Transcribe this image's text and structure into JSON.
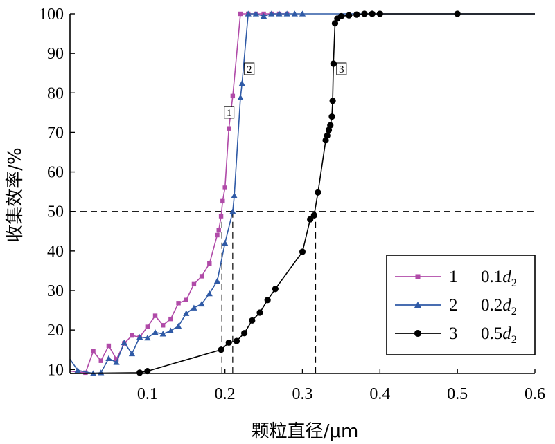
{
  "chart_data": {
    "type": "line",
    "xlabel": "颗粒直径/μm",
    "ylabel": "收集效率/%",
    "xlim": [
      0.0,
      0.6
    ],
    "ylim": [
      9,
      100
    ],
    "x_ticks": [
      "0.1",
      "0.2",
      "0.3",
      "0.4",
      "0.5",
      "0.6"
    ],
    "y_ticks": [
      "10",
      "20",
      "30",
      "40",
      "50",
      "60",
      "70",
      "80",
      "90",
      "100"
    ],
    "grid": false,
    "legend_position": "bottom-right",
    "reference_lines": {
      "horizontal_y": 50,
      "vertical_x": [
        0.196,
        0.21,
        0.317
      ]
    },
    "series": [
      {
        "id": "1",
        "name": "1",
        "legend_label": "0.1d",
        "legend_sub": "2",
        "curve_tag": "1",
        "color": "#b04aa8",
        "marker": "square",
        "points": [
          [
            0.0,
            9.6
          ],
          [
            0.02,
            9.2
          ],
          [
            0.03,
            14.6
          ],
          [
            0.04,
            12.2
          ],
          [
            0.05,
            16.0
          ],
          [
            0.06,
            12.6
          ],
          [
            0.07,
            16.6
          ],
          [
            0.08,
            18.6
          ],
          [
            0.09,
            18.2
          ],
          [
            0.1,
            20.8
          ],
          [
            0.11,
            23.6
          ],
          [
            0.12,
            21.2
          ],
          [
            0.13,
            22.8
          ],
          [
            0.14,
            26.8
          ],
          [
            0.15,
            27.6
          ],
          [
            0.16,
            31.6
          ],
          [
            0.17,
            33.6
          ],
          [
            0.18,
            36.8
          ],
          [
            0.19,
            44.0
          ],
          [
            0.192,
            45.2
          ],
          [
            0.195,
            48.8
          ],
          [
            0.197,
            52.6
          ],
          [
            0.2,
            56.0
          ],
          [
            0.205,
            71.0
          ],
          [
            0.21,
            79.2
          ],
          [
            0.22,
            100.0
          ],
          [
            0.23,
            100.0
          ],
          [
            0.24,
            100.0
          ],
          [
            0.25,
            100.0
          ],
          [
            0.26,
            100.0
          ],
          [
            0.27,
            100.0
          ],
          [
            0.28,
            100.0
          ]
        ]
      },
      {
        "id": "2",
        "name": "2",
        "legend_label": "0.2d",
        "legend_sub": "2",
        "curve_tag": "2",
        "color": "#2f5aa6",
        "marker": "triangle",
        "points": [
          [
            0.0,
            12.6
          ],
          [
            0.01,
            9.8
          ],
          [
            0.03,
            9.0
          ],
          [
            0.04,
            9.2
          ],
          [
            0.05,
            12.8
          ],
          [
            0.06,
            11.8
          ],
          [
            0.07,
            16.8
          ],
          [
            0.08,
            14.0
          ],
          [
            0.09,
            18.2
          ],
          [
            0.1,
            18.0
          ],
          [
            0.11,
            19.4
          ],
          [
            0.12,
            19.0
          ],
          [
            0.13,
            19.8
          ],
          [
            0.14,
            21.0
          ],
          [
            0.15,
            24.2
          ],
          [
            0.16,
            25.6
          ],
          [
            0.17,
            26.6
          ],
          [
            0.18,
            29.2
          ],
          [
            0.19,
            32.4
          ],
          [
            0.2,
            42.0
          ],
          [
            0.21,
            50.0
          ],
          [
            0.212,
            54.0
          ],
          [
            0.22,
            78.8
          ],
          [
            0.222,
            82.4
          ],
          [
            0.23,
            100.0
          ],
          [
            0.24,
            100.0
          ],
          [
            0.25,
            99.4
          ],
          [
            0.26,
            100.0
          ],
          [
            0.27,
            100.0
          ],
          [
            0.28,
            100.0
          ],
          [
            0.29,
            100.0
          ],
          [
            0.3,
            100.0
          ],
          [
            0.6,
            100.0
          ]
        ]
      },
      {
        "id": "3",
        "name": "3",
        "legend_label": "0.5d",
        "legend_sub": "2",
        "curve_tag": "3",
        "color": "#000000",
        "marker": "circle",
        "points": [
          [
            0.0,
            9.0
          ],
          [
            0.09,
            9.2
          ],
          [
            0.1,
            9.6
          ],
          [
            0.195,
            15.0
          ],
          [
            0.205,
            16.8
          ],
          [
            0.215,
            17.2
          ],
          [
            0.225,
            19.2
          ],
          [
            0.235,
            22.4
          ],
          [
            0.245,
            24.4
          ],
          [
            0.255,
            27.6
          ],
          [
            0.265,
            30.4
          ],
          [
            0.3,
            39.8
          ],
          [
            0.31,
            48.0
          ],
          [
            0.315,
            49.0
          ],
          [
            0.32,
            54.8
          ],
          [
            0.33,
            68.0
          ],
          [
            0.332,
            69.2
          ],
          [
            0.334,
            70.6
          ],
          [
            0.336,
            71.8
          ],
          [
            0.338,
            74.0
          ],
          [
            0.339,
            78.0
          ],
          [
            0.34,
            87.4
          ],
          [
            0.342,
            97.6
          ],
          [
            0.345,
            98.8
          ],
          [
            0.35,
            99.4
          ],
          [
            0.36,
            99.6
          ],
          [
            0.37,
            99.8
          ],
          [
            0.38,
            100.0
          ],
          [
            0.39,
            100.0
          ],
          [
            0.4,
            100.0
          ],
          [
            0.5,
            100.0
          ],
          [
            0.6,
            100.0
          ]
        ]
      }
    ]
  }
}
